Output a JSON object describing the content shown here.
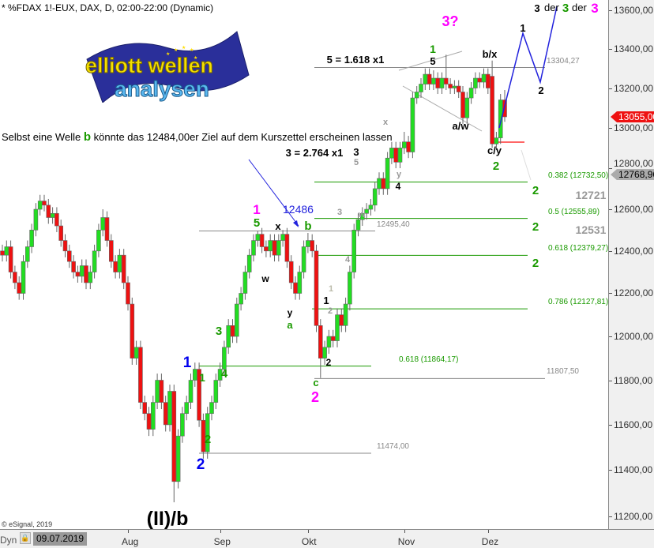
{
  "title": "* %FDAX 1!-EUX, DAX, D, 02:00-22:00 (Dynamic)",
  "copyright": "© eSignal, 2019",
  "logo": {
    "line1": "elliott wellen",
    "line2": "analysen"
  },
  "comment": {
    "before": "Selbst eine Welle",
    "wave": "b",
    "after": "könnte das 12484,00er Ziel auf dem Kurszettel erscheinen lassen"
  },
  "bottom": {
    "dyn": "Dyn",
    "cursor_date": "09.07.2019"
  },
  "colors": {
    "up": "#22dd22",
    "down": "#ee1111",
    "fib": "#1a9a00",
    "level": "#888888",
    "projection": "#2222dd",
    "magenta": "#ff00ff",
    "blue": "#0000ee"
  },
  "chart_data": {
    "type": "candlestick",
    "title": "* %FDAX 1!-EUX, DAX, D, 02:00-22:00 (Dynamic)",
    "ylim": [
      11200,
      13600
    ],
    "y_ticks": [
      "13600,00",
      "13400,00",
      "13200,00",
      "13000,00",
      "12800,00",
      "12600,00",
      "12400,00",
      "12200,00",
      "12000,00",
      "11800,00",
      "11600,00",
      "11400,00",
      "11200,00"
    ],
    "y_tick_values": [
      13600,
      13400,
      13200,
      13000,
      12800,
      12600,
      12400,
      12200,
      12000,
      11800,
      11600,
      11400,
      11200
    ],
    "x_ticks": [
      {
        "label": "Aug",
        "bar": 30
      },
      {
        "label": "Sep",
        "bar": 52
      },
      {
        "label": "Okt",
        "bar": 73
      },
      {
        "label": "Nov",
        "bar": 96
      },
      {
        "label": "Dez",
        "bar": 116
      }
    ],
    "ohlc": [
      [
        12400,
        12430,
        12350,
        12380
      ],
      [
        12380,
        12450,
        12350,
        12420
      ],
      [
        12420,
        12450,
        12270,
        12300
      ],
      [
        12300,
        12330,
        12220,
        12250
      ],
      [
        12250,
        12280,
        12170,
        12200
      ],
      [
        12200,
        12380,
        12170,
        12350
      ],
      [
        12350,
        12450,
        12320,
        12420
      ],
      [
        12420,
        12530,
        12390,
        12500
      ],
      [
        12500,
        12630,
        12470,
        12600
      ],
      [
        12600,
        12670,
        12570,
        12640
      ],
      [
        12640,
        12670,
        12590,
        12620
      ],
      [
        12620,
        12650,
        12530,
        12560
      ],
      [
        12560,
        12610,
        12530,
        12580
      ],
      [
        12580,
        12610,
        12490,
        12520
      ],
      [
        12520,
        12550,
        12420,
        12450
      ],
      [
        12450,
        12480,
        12370,
        12400
      ],
      [
        12400,
        12430,
        12320,
        12350
      ],
      [
        12350,
        12380,
        12270,
        12300
      ],
      [
        12300,
        12330,
        12250,
        12280
      ],
      [
        12280,
        12360,
        12250,
        12330
      ],
      [
        12330,
        12360,
        12220,
        12250
      ],
      [
        12250,
        12330,
        12220,
        12300
      ],
      [
        12300,
        12430,
        12270,
        12400
      ],
      [
        12400,
        12530,
        12370,
        12500
      ],
      [
        12500,
        12600,
        12470,
        12560
      ],
      [
        12560,
        12590,
        12420,
        12450
      ],
      [
        12450,
        12480,
        12320,
        12350
      ],
      [
        12350,
        12380,
        12270,
        12300
      ],
      [
        12300,
        12410,
        12270,
        12380
      ],
      [
        12380,
        12410,
        12220,
        12250
      ],
      [
        12250,
        12280,
        12120,
        12150
      ],
      [
        12150,
        12180,
        11870,
        11900
      ],
      [
        11900,
        11980,
        11870,
        11950
      ],
      [
        11950,
        11980,
        11670,
        11700
      ],
      [
        11700,
        11730,
        11620,
        11650
      ],
      [
        11650,
        11680,
        11550,
        11580
      ],
      [
        11580,
        11730,
        11550,
        11700
      ],
      [
        11700,
        11830,
        11670,
        11800
      ],
      [
        11800,
        11830,
        11670,
        11700
      ],
      [
        11700,
        11730,
        11570,
        11600
      ],
      [
        11600,
        11780,
        11570,
        11750
      ],
      [
        11750,
        11780,
        11260,
        11350
      ],
      [
        11350,
        11580,
        11320,
        11550
      ],
      [
        11550,
        11680,
        11520,
        11650
      ],
      [
        11650,
        11730,
        11620,
        11700
      ],
      [
        11700,
        11830,
        11670,
        11800
      ],
      [
        11800,
        11880,
        11770,
        11850
      ],
      [
        11850,
        11880,
        11590,
        11620
      ],
      [
        11620,
        11650,
        11450,
        11480
      ],
      [
        11480,
        11680,
        11450,
        11650
      ],
      [
        11650,
        11730,
        11620,
        11700
      ],
      [
        11700,
        11830,
        11670,
        11800
      ],
      [
        11800,
        11880,
        11770,
        11850
      ],
      [
        11850,
        11980,
        11820,
        11950
      ],
      [
        11950,
        12080,
        11920,
        12050
      ],
      [
        12050,
        12080,
        11970,
        12000
      ],
      [
        12000,
        12180,
        11970,
        12150
      ],
      [
        12150,
        12230,
        12120,
        12200
      ],
      [
        12200,
        12330,
        12170,
        12300
      ],
      [
        12300,
        12410,
        12270,
        12380
      ],
      [
        12380,
        12480,
        12350,
        12450
      ],
      [
        12450,
        12495,
        12420,
        12480
      ],
      [
        12480,
        12510,
        12390,
        12420
      ],
      [
        12420,
        12450,
        12370,
        12400
      ],
      [
        12400,
        12480,
        12370,
        12450
      ],
      [
        12450,
        12480,
        12350,
        12380
      ],
      [
        12380,
        12480,
        12350,
        12450
      ],
      [
        12450,
        12500,
        12420,
        12480
      ],
      [
        12480,
        12510,
        12320,
        12350
      ],
      [
        12350,
        12380,
        12220,
        12250
      ],
      [
        12250,
        12280,
        12170,
        12200
      ],
      [
        12200,
        12330,
        12170,
        12300
      ],
      [
        12300,
        12450,
        12270,
        12420
      ],
      [
        12420,
        12486,
        12390,
        12450
      ],
      [
        12450,
        12480,
        12370,
        12400
      ],
      [
        12400,
        12430,
        12020,
        12050
      ],
      [
        12050,
        12080,
        11810,
        11900
      ],
      [
        11900,
        11980,
        11870,
        11950
      ],
      [
        11950,
        12030,
        11920,
        12000
      ],
      [
        12000,
        12030,
        11950,
        11980
      ],
      [
        11980,
        12130,
        11950,
        12100
      ],
      [
        12100,
        12130,
        12020,
        12050
      ],
      [
        12050,
        12180,
        12020,
        12150
      ],
      [
        12150,
        12330,
        12120,
        12300
      ],
      [
        12300,
        12530,
        12270,
        12500
      ],
      [
        12500,
        12580,
        12470,
        12550
      ],
      [
        12550,
        12610,
        12520,
        12580
      ],
      [
        12580,
        12630,
        12550,
        12600
      ],
      [
        12600,
        12650,
        12570,
        12620
      ],
      [
        12620,
        12730,
        12590,
        12700
      ],
      [
        12700,
        12780,
        12670,
        12750
      ],
      [
        12750,
        12780,
        12670,
        12700
      ],
      [
        12700,
        12880,
        12670,
        12850
      ],
      [
        12850,
        12930,
        12820,
        12900
      ],
      [
        12900,
        12930,
        12800,
        12830
      ],
      [
        12830,
        12930,
        12800,
        12900
      ],
      [
        12900,
        12980,
        12870,
        12930
      ],
      [
        12930,
        12960,
        12850,
        12880
      ],
      [
        12880,
        13180,
        12850,
        13150
      ],
      [
        13150,
        13210,
        13120,
        13180
      ],
      [
        13180,
        13250,
        13150,
        13220
      ],
      [
        13220,
        13300,
        13190,
        13270
      ],
      [
        13270,
        13300,
        13190,
        13220
      ],
      [
        13220,
        13290,
        13190,
        13250
      ],
      [
        13250,
        13280,
        13170,
        13200
      ],
      [
        13200,
        13280,
        13170,
        13250
      ],
      [
        13250,
        13370,
        13190,
        13220
      ],
      [
        13220,
        13250,
        13170,
        13200
      ],
      [
        13200,
        13240,
        13170,
        13210
      ],
      [
        13210,
        13240,
        13150,
        13180
      ],
      [
        13180,
        13210,
        13020,
        13050
      ],
      [
        13050,
        13180,
        13020,
        13150
      ],
      [
        13150,
        13230,
        13120,
        13200
      ],
      [
        13200,
        13280,
        13170,
        13250
      ],
      [
        13250,
        13280,
        13200,
        13230
      ],
      [
        13230,
        13300,
        13200,
        13270
      ],
      [
        13270,
        13300,
        13170,
        13200
      ],
      [
        13260,
        13340,
        12900,
        12920
      ],
      [
        12920,
        12980,
        12890,
        12950
      ],
      [
        12950,
        13170,
        12920,
        13140
      ],
      [
        13140,
        13190,
        13030,
        13055
      ]
    ],
    "levels": [
      {
        "price": 13304.27,
        "label": "13304,27",
        "kind": "level"
      },
      {
        "price": 12732.5,
        "label": "0.382 (12732,50)",
        "kind": "fib"
      },
      {
        "price": 12555.89,
        "label": "0.5 (12555,89)",
        "kind": "fib"
      },
      {
        "price": 12495.4,
        "label": "12495,40",
        "kind": "level"
      },
      {
        "price": 12379.27,
        "label": "0.618 (12379,27)",
        "kind": "fib"
      },
      {
        "price": 12127.81,
        "label": "0.786 (12127,81)",
        "kind": "fib"
      },
      {
        "price": 11864.17,
        "label": "0.618 (11864,17)",
        "kind": "fib"
      },
      {
        "price": 11807.5,
        "label": "11807,50",
        "kind": "level"
      },
      {
        "price": 11474.0,
        "label": "11474,00",
        "kind": "level"
      }
    ],
    "price_tags": {
      "last": {
        "value": 13055.0,
        "label": "13055,00"
      },
      "marker": {
        "value": 12768.96,
        "label": "12768,96"
      }
    },
    "projection": [
      13000,
      13480,
      13230,
      13620
    ],
    "annotations": {
      "q3": "3?",
      "der_a": "3",
      "der_word1": "der",
      "der_b": "3",
      "der_word2": "der",
      "der_c": "3",
      "p1": "1",
      "p2": "2",
      "bx": "b/x",
      "g1": "1",
      "k5": "5",
      "ratio5": "5 = 1.618 x1",
      "aw": "a/w",
      "cy": "c/y",
      "g2": "2",
      "gx": "x",
      "gy": "y",
      "k4": "4",
      "ratio3": "3 = 2.764 x1",
      "k3": "3",
      "g5": "5",
      "t12721": "12721",
      "t12531": "12531",
      "f2a": "2",
      "f2b": "2",
      "f2c": "2",
      "m1": "1",
      "g5b": "5",
      "kx": "x",
      "t12486": "12486",
      "gb": "b",
      "g3s": "3",
      "gws": "w",
      "g4s": "4",
      "kw": "w",
      "ky": "y",
      "ga": "a",
      "s1": "1",
      "k1": "1",
      "s2": "2",
      "k2": "2",
      "gc": "c",
      "m2": "2",
      "b1": "1",
      "gg1": "1",
      "gg3": "3",
      "gg4": "4",
      "gg2": "2",
      "b2": "2",
      "IIb": "(II)/b"
    }
  }
}
